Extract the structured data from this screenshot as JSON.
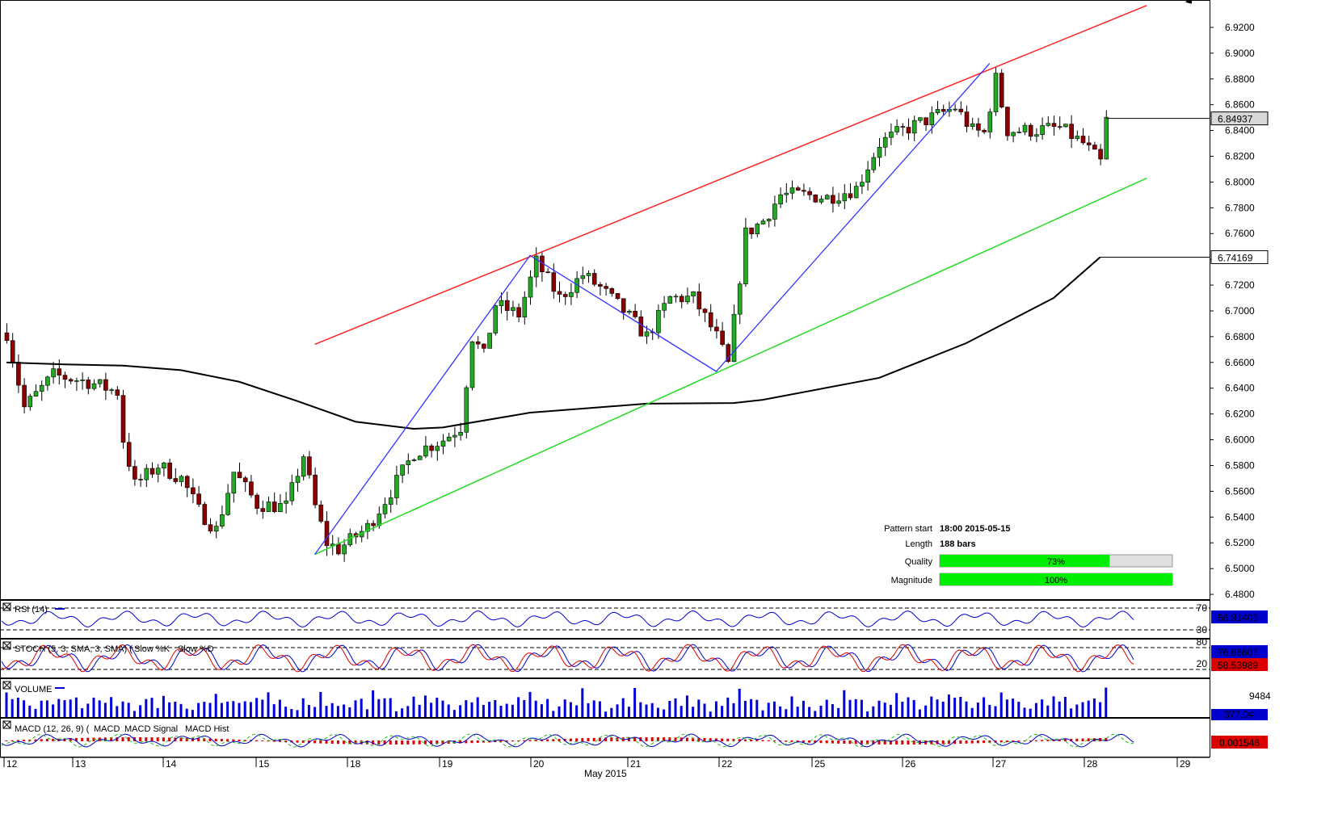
{
  "chart_data": {
    "type": "candlestick",
    "symbol_panel": {
      "y_ticks": [
        "6.9200",
        "6.9000",
        "6.8800",
        "6.8600",
        "6.8400",
        "6.8200",
        "6.8000",
        "6.7800",
        "6.7600",
        "6.7400",
        "6.7200",
        "6.7000",
        "6.6800",
        "6.6600",
        "6.6400",
        "6.6200",
        "6.6000",
        "6.5800",
        "6.5600",
        "6.5400",
        "6.5200",
        "6.5000",
        "6.4800"
      ],
      "ylim": [
        6.47,
        6.935
      ],
      "last_price_label": "6.84937",
      "ma_label": "6.74169",
      "moving_average": [
        {
          "t": 0,
          "v": 6.66
        },
        {
          "t": 10,
          "v": 6.6585
        },
        {
          "t": 20,
          "v": 6.6575
        },
        {
          "t": 30,
          "v": 6.654
        },
        {
          "t": 40,
          "v": 6.645
        },
        {
          "t": 50,
          "v": 6.63
        },
        {
          "t": 60,
          "v": 6.614
        },
        {
          "t": 70,
          "v": 6.6085
        },
        {
          "t": 75,
          "v": 6.6095
        },
        {
          "t": 90,
          "v": 6.621
        },
        {
          "t": 110,
          "v": 6.628
        },
        {
          "t": 125,
          "v": 6.6285
        },
        {
          "t": 130,
          "v": 6.631
        },
        {
          "t": 150,
          "v": 6.648
        },
        {
          "t": 165,
          "v": 6.675
        },
        {
          "t": 180,
          "v": 6.71
        },
        {
          "t": 188,
          "v": 6.7417
        }
      ],
      "channel_upper": {
        "start": [
          53,
          6.674
        ],
        "end": [
          196,
          6.937
        ]
      },
      "channel_lower": {
        "start": [
          53,
          6.511
        ],
        "end": [
          196,
          6.803
        ]
      },
      "zigzag": [
        [
          53,
          6.511
        ],
        [
          90,
          6.743
        ],
        [
          122,
          6.653
        ],
        [
          169,
          6.892
        ]
      ],
      "zigzag_color": "#3333ff",
      "upper_color": "#ff2222",
      "lower_color": "#22dd22"
    },
    "x_axis": {
      "day_labels": [
        "12",
        "13",
        "14",
        "15",
        "18",
        "19",
        "20",
        "21",
        "22",
        "25",
        "26",
        "27",
        "28",
        "29"
      ],
      "month_label": "May 2015"
    },
    "pattern_info": {
      "pattern_start_label": "Pattern start",
      "pattern_start_value": "18:00 2015-05-15",
      "length_label": "Length",
      "length_value": "188 bars",
      "quality_label": "Quality",
      "quality_value": "73%",
      "quality_fraction": 0.73,
      "magnitude_label": "Magnitude",
      "magnitude_value": "100%",
      "magnitude_fraction": 1.0,
      "bar_color": "#00ee00"
    },
    "rsi": {
      "title": "RSI (14)",
      "levels": [
        "70",
        "30"
      ],
      "value_label": "56.91403"
    },
    "stoch": {
      "title_prefix": "STOCH (5, 3, SMA, 3, SMA)",
      "slow_k": "Slow %K",
      "slow_d": "Slow %D",
      "levels": [
        "80",
        "20"
      ],
      "value_k": "76.66607",
      "value_d": "58.53989"
    },
    "volume": {
      "title": "VOLUME",
      "level": "9484",
      "value_label": "377.04"
    },
    "macd": {
      "title_prefix": "MACD (12, 26, 9)",
      "macd": "MACD",
      "signal": "MACD Signal",
      "hist": "MACD Hist",
      "value_label": "0.001546"
    }
  }
}
